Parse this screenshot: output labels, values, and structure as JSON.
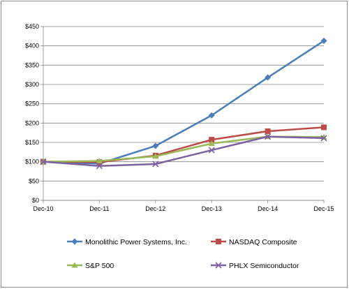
{
  "chart_data": {
    "type": "line",
    "title": "",
    "xlabel": "",
    "ylabel": "",
    "x": [
      "Dec-10",
      "Dec-11",
      "Dec-12",
      "Dec-13",
      "Dec-14",
      "Dec-15"
    ],
    "ylim": [
      0,
      450
    ],
    "yticks": [
      0,
      50,
      100,
      150,
      200,
      250,
      300,
      350,
      400,
      450
    ],
    "ytick_labels": [
      "$0",
      "$50",
      "$100",
      "$150",
      "$200",
      "$250",
      "$300",
      "$350",
      "$400",
      "$450"
    ],
    "grid": "horizontal",
    "legend": "bottom",
    "series": [
      {
        "name": "Monolithic Power Systems, Inc.",
        "color": "#4a7ebb",
        "marker": "diamond",
        "values": [
          100,
          95,
          141,
          220,
          318,
          413
        ]
      },
      {
        "name": "NASDAQ Composite",
        "color": "#be4b48",
        "marker": "square",
        "values": [
          100,
          99,
          116,
          157,
          179,
          189
        ]
      },
      {
        "name": "S&P 500",
        "color": "#98b954",
        "marker": "triangle",
        "values": [
          100,
          102,
          114,
          147,
          165,
          164
        ]
      },
      {
        "name": "PHLX Semiconductor",
        "color": "#7d60a0",
        "marker": "x",
        "values": [
          100,
          89,
          94,
          130,
          165,
          161
        ]
      }
    ]
  }
}
